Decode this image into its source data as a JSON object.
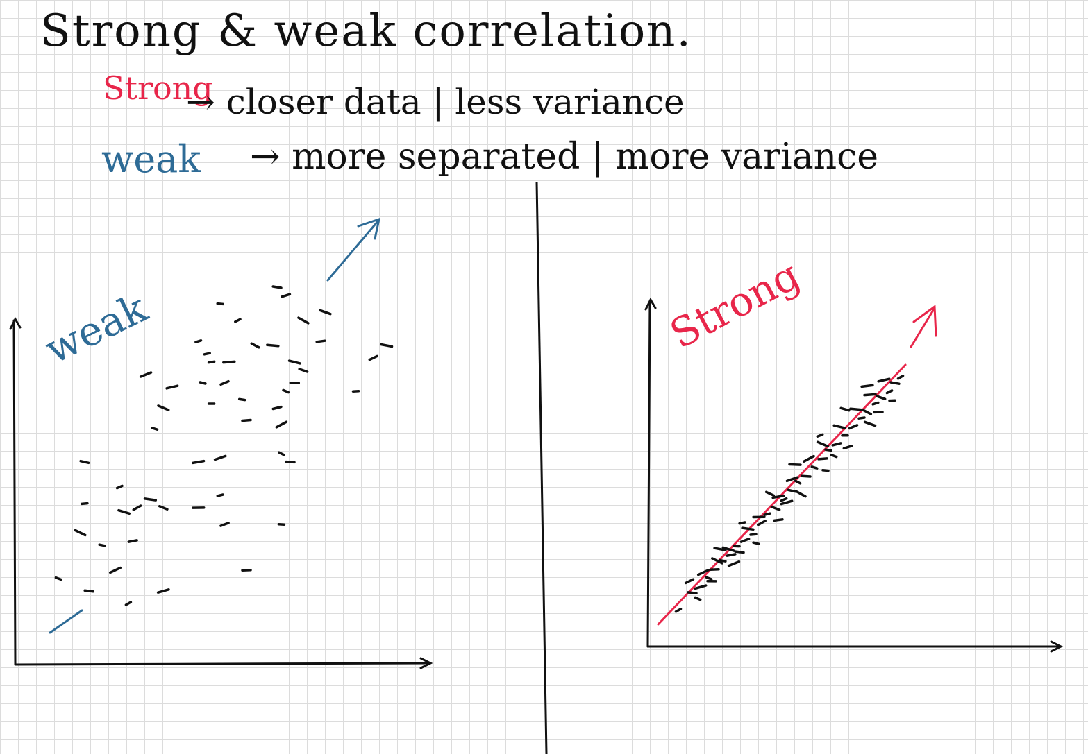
{
  "title": "Strong & weak correlation.",
  "definitions": [
    {
      "term": "Strong",
      "description": "→ closer data | less variance",
      "color": "#e8264a"
    },
    {
      "term": "weak",
      "description": "→ more separated | more variance",
      "color": "#2e6b96"
    }
  ],
  "chart_data": [
    {
      "type": "scatter",
      "label": "weak",
      "label_color": "#2e6b96",
      "trend_color": "#2e6b96",
      "points": [
        [
          2.3,
          1.0
        ],
        [
          1.4,
          1.3
        ],
        [
          3.1,
          1.3
        ],
        [
          0.7,
          1.6
        ],
        [
          5.0,
          1.8
        ],
        [
          2.0,
          1.8
        ],
        [
          1.7,
          2.4
        ],
        [
          2.4,
          2.5
        ],
        [
          1.2,
          2.7
        ],
        [
          5.8,
          2.9
        ],
        [
          4.5,
          2.9
        ],
        [
          2.2,
          3.2
        ],
        [
          1.3,
          3.4
        ],
        [
          2.5,
          3.3
        ],
        [
          2.8,
          3.5
        ],
        [
          4.4,
          3.6
        ],
        [
          3.1,
          3.3
        ],
        [
          3.9,
          3.3
        ],
        [
          2.1,
          3.8
        ],
        [
          1.3,
          4.4
        ],
        [
          3.9,
          4.4
        ],
        [
          5.8,
          4.6
        ],
        [
          6.0,
          4.4
        ],
        [
          4.4,
          4.5
        ],
        [
          2.9,
          5.2
        ],
        [
          5.0,
          5.4
        ],
        [
          5.8,
          5.3
        ],
        [
          4.9,
          5.9
        ],
        [
          5.7,
          5.7
        ],
        [
          3.1,
          5.7
        ],
        [
          4.2,
          5.8
        ],
        [
          4.5,
          6.3
        ],
        [
          6.1,
          6.8
        ],
        [
          4.2,
          6.8
        ],
        [
          5.2,
          7.2
        ],
        [
          5.6,
          7.2
        ],
        [
          3.9,
          7.3
        ],
        [
          6.3,
          6.6
        ],
        [
          4.6,
          6.8
        ],
        [
          4.8,
          7.8
        ],
        [
          5.7,
          8.6
        ],
        [
          3.3,
          6.2
        ],
        [
          5.9,
          6.1
        ],
        [
          6.1,
          6.3
        ],
        [
          2.7,
          6.5
        ],
        [
          4.0,
          6.3
        ],
        [
          6.7,
          7.3
        ],
        [
          6.3,
          7.8
        ],
        [
          4.4,
          8.2
        ],
        [
          5.9,
          8.4
        ],
        [
          6.8,
          8.0
        ],
        [
          7.5,
          6.1
        ],
        [
          7.9,
          6.9
        ],
        [
          8.2,
          7.2
        ],
        [
          4.1,
          7.0
        ]
      ]
    },
    {
      "type": "scatter",
      "label": "Strong",
      "label_color": "#e8264a",
      "trend_color": "#e8264a",
      "points": [
        [
          0.8,
          0.6
        ],
        [
          1.3,
          1.2
        ],
        [
          1.6,
          1.4
        ],
        [
          1.9,
          1.7
        ],
        [
          2.1,
          2.0
        ],
        [
          1.7,
          1.9
        ],
        [
          2.4,
          2.3
        ],
        [
          2.7,
          2.5
        ],
        [
          2.2,
          2.3
        ],
        [
          2.9,
          2.8
        ],
        [
          3.2,
          3.0
        ],
        [
          2.6,
          2.7
        ],
        [
          3.5,
          3.2
        ],
        [
          3.8,
          3.6
        ],
        [
          3.3,
          3.4
        ],
        [
          4.0,
          3.9
        ],
        [
          4.3,
          4.1
        ],
        [
          3.7,
          3.8
        ],
        [
          4.6,
          4.4
        ],
        [
          4.9,
          4.7
        ],
        [
          4.4,
          4.5
        ],
        [
          5.1,
          5.0
        ],
        [
          5.4,
          5.2
        ],
        [
          4.9,
          5.1
        ],
        [
          5.7,
          5.5
        ],
        [
          6.0,
          5.8
        ],
        [
          5.5,
          5.8
        ],
        [
          6.2,
          6.1
        ],
        [
          6.5,
          6.3
        ],
        [
          6.0,
          6.3
        ],
        [
          6.8,
          6.6
        ],
        [
          7.1,
          6.9
        ],
        [
          6.6,
          6.9
        ],
        [
          7.4,
          7.2
        ],
        [
          7.6,
          7.4
        ],
        [
          7.2,
          7.5
        ],
        [
          7.9,
          7.7
        ],
        [
          8.1,
          7.9
        ],
        [
          7.7,
          8.0
        ],
        [
          8.4,
          8.1
        ],
        [
          8.6,
          8.4
        ],
        [
          8.2,
          8.5
        ],
        [
          1.5,
          1.0
        ],
        [
          2.0,
          1.6
        ],
        [
          2.8,
          2.2
        ],
        [
          3.6,
          2.9
        ],
        [
          4.4,
          3.7
        ],
        [
          5.2,
          4.6
        ],
        [
          6.1,
          5.4
        ],
        [
          6.9,
          6.2
        ],
        [
          7.7,
          7.0
        ],
        [
          8.5,
          7.8
        ],
        [
          1.2,
          1.6
        ],
        [
          2.3,
          2.7
        ],
        [
          3.1,
          3.6
        ],
        [
          4.1,
          4.6
        ],
        [
          5.0,
          5.6
        ],
        [
          5.9,
          6.6
        ],
        [
          6.8,
          7.5
        ],
        [
          7.6,
          8.3
        ],
        [
          8.8,
          8.6
        ],
        [
          3.0,
          2.6
        ],
        [
          4.7,
          4.3
        ],
        [
          6.4,
          5.9
        ],
        [
          8.0,
          7.4
        ]
      ]
    }
  ],
  "colors": {
    "ink": "#111111",
    "red": "#e8264a",
    "blue": "#2e6b96",
    "grid": "#dcdcdc"
  }
}
